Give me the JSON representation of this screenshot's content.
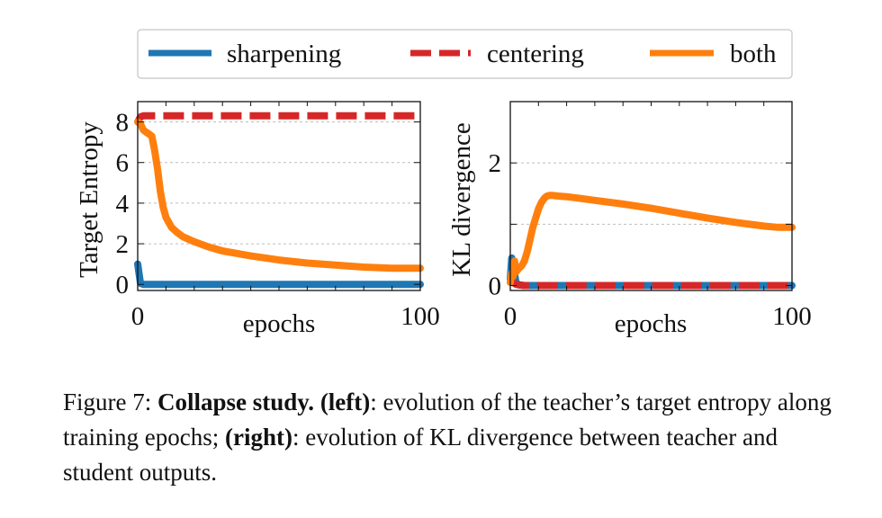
{
  "legend": {
    "position": "top-center",
    "entries": [
      {
        "label": "sharpening",
        "color": "#1f77b4",
        "style": "solid"
      },
      {
        "label": "centering",
        "color": "#d62728",
        "style": "dashed"
      },
      {
        "label": "both",
        "color": "#ff7f0e",
        "style": "solid"
      }
    ]
  },
  "chart_data": [
    {
      "type": "line",
      "title": "",
      "xlabel": "epochs",
      "ylabel": "Target Entropy",
      "xlim": [
        0,
        100
      ],
      "ylim": [
        -0.3,
        9.0
      ],
      "xticks": [
        0,
        10,
        20,
        30,
        40,
        50,
        60,
        70,
        80,
        90,
        100
      ],
      "xtick_labels": [
        {
          "value": 0,
          "label": "0"
        },
        {
          "value": 100,
          "label": "100"
        }
      ],
      "yticks": [
        0,
        2,
        4,
        6,
        8
      ],
      "ytick_labels": [
        "0",
        "2",
        "4",
        "6",
        "8"
      ],
      "grid": "y-dashed",
      "series": [
        {
          "name": "sharpening",
          "color": "#1f77b4",
          "style": "solid",
          "x": [
            0,
            0.5,
            1,
            2,
            5,
            20,
            50,
            100
          ],
          "y": [
            1.0,
            0.5,
            0.05,
            0.0,
            0.0,
            0.0,
            0.0,
            0.0
          ]
        },
        {
          "name": "centering",
          "color": "#d62728",
          "style": "dashed",
          "x": [
            0,
            1,
            2,
            5,
            20,
            50,
            100
          ],
          "y": [
            8.0,
            8.25,
            8.3,
            8.3,
            8.3,
            8.3,
            8.3
          ]
        },
        {
          "name": "both",
          "color": "#ff7f0e",
          "style": "solid",
          "x": [
            0,
            1,
            2,
            3,
            4,
            5,
            6,
            7,
            8,
            9,
            10,
            12,
            14,
            16,
            20,
            25,
            30,
            40,
            50,
            60,
            70,
            80,
            90,
            100
          ],
          "y": [
            8.0,
            7.9,
            7.6,
            7.5,
            7.4,
            7.3,
            6.6,
            5.7,
            4.6,
            3.8,
            3.3,
            2.8,
            2.55,
            2.35,
            2.1,
            1.85,
            1.65,
            1.4,
            1.2,
            1.05,
            0.95,
            0.85,
            0.8,
            0.8
          ]
        }
      ]
    },
    {
      "type": "line",
      "title": "",
      "xlabel": "epochs",
      "ylabel": "KL divergence",
      "xlim": [
        0,
        100
      ],
      "ylim": [
        -0.08,
        3.0
      ],
      "xticks": [
        0,
        10,
        20,
        30,
        40,
        50,
        60,
        70,
        80,
        90,
        100
      ],
      "xtick_labels": [
        {
          "value": 0,
          "label": "0"
        },
        {
          "value": 100,
          "label": "100"
        }
      ],
      "yticks": [
        0,
        1,
        2
      ],
      "ytick_labels": [
        {
          "value": 0,
          "label": "0"
        },
        {
          "value": 2,
          "label": "2"
        }
      ],
      "grid": "y-dashed",
      "series": [
        {
          "name": "sharpening",
          "color": "#1f77b4",
          "style": "solid",
          "x": [
            0,
            0.5,
            1,
            2,
            3,
            5,
            20,
            50,
            100
          ],
          "y": [
            0.1,
            0.45,
            0.35,
            0.05,
            0.01,
            0.0,
            0.0,
            0.0,
            0.0
          ]
        },
        {
          "name": "centering",
          "color": "#d62728",
          "style": "dashed",
          "x": [
            0,
            1,
            2,
            5,
            20,
            50,
            100
          ],
          "y": [
            0.1,
            0.05,
            0.02,
            0.0,
            0.0,
            0.0,
            0.0
          ]
        },
        {
          "name": "both",
          "color": "#ff7f0e",
          "style": "solid",
          "x": [
            0,
            0.5,
            1,
            1.5,
            2,
            3,
            4,
            5,
            6,
            7,
            8,
            9,
            10,
            11,
            12,
            13,
            14,
            15,
            17,
            20,
            25,
            30,
            40,
            50,
            60,
            70,
            80,
            90,
            95,
            100
          ],
          "y": [
            0.05,
            0.2,
            0.15,
            0.4,
            0.22,
            0.28,
            0.32,
            0.4,
            0.55,
            0.75,
            0.95,
            1.1,
            1.25,
            1.35,
            1.42,
            1.46,
            1.47,
            1.47,
            1.46,
            1.45,
            1.42,
            1.39,
            1.33,
            1.26,
            1.18,
            1.1,
            1.03,
            0.97,
            0.95,
            0.95
          ]
        }
      ]
    }
  ],
  "caption": {
    "label": "Figure 7: ",
    "bold_title": "Collapse study.",
    "left_tag": "(left)",
    "left_text": ": evolution of the teacher’s target entropy along training epochs; ",
    "right_tag": "(right)",
    "right_text": ": evolution of KL divergence between teacher and student outputs."
  }
}
